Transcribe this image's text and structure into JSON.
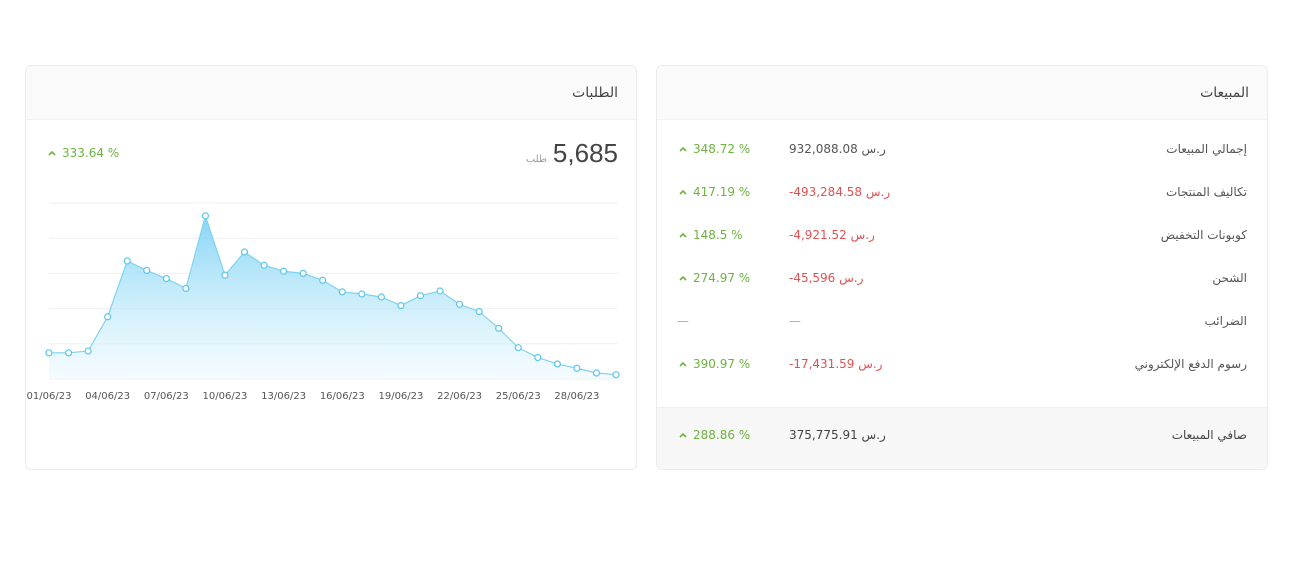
{
  "colors": {
    "positive": "#6db33f",
    "negative": "#e05252",
    "chart_line": "#7fd3f2",
    "chart_fill_top": "#7fd3f5",
    "chart_fill_bottom": "#eaf8fd"
  },
  "orders": {
    "title": "الطلبات",
    "total": "5,685",
    "unit": "طلب",
    "change": "333.64 %",
    "change_icon": "chevron-up-icon"
  },
  "sales": {
    "title": "المبيعات",
    "rows": [
      {
        "label": "إجمالي المبيعات",
        "amount": "932,088.08 ر.س",
        "negative": false,
        "change": "348.72 %"
      },
      {
        "label": "تكاليف المنتجات",
        "amount": "-493,284.58 ر.س",
        "negative": true,
        "change": "417.19 %"
      },
      {
        "label": "كوبونات التخفيض",
        "amount": "-4,921.52 ر.س",
        "negative": true,
        "change": "148.5 %"
      },
      {
        "label": "الشحن",
        "amount": "-45,596 ر.س",
        "negative": true,
        "change": "274.97 %"
      },
      {
        "label": "الضرائب",
        "amount": "—",
        "negative": false,
        "change": "—"
      },
      {
        "label": "رسوم الدفع الإلكتروني",
        "amount": "-17,431.59 ر.س",
        "negative": true,
        "change": "390.97 %"
      }
    ],
    "net": {
      "label": "صافي المبيعات",
      "amount": "375,775.91 ر.س",
      "change": "288.86 %"
    }
  },
  "chart_data": {
    "type": "area",
    "title": "",
    "xlabel": "",
    "ylabel": "",
    "grid": true,
    "x": [
      "01/06/23",
      "02/06/23",
      "03/06/23",
      "04/06/23",
      "05/06/23",
      "06/06/23",
      "07/06/23",
      "08/06/23",
      "09/06/23",
      "10/06/23",
      "11/06/23",
      "12/06/23",
      "13/06/23",
      "14/06/23",
      "15/06/23",
      "16/06/23",
      "17/06/23",
      "18/06/23",
      "19/06/23",
      "20/06/23",
      "21/06/23",
      "22/06/23",
      "23/06/23",
      "24/06/23",
      "25/06/23",
      "26/06/23",
      "27/06/23",
      "28/06/23",
      "29/06/23",
      "30/06/23"
    ],
    "tick_labels": [
      "01/06/23",
      "04/06/23",
      "07/06/23",
      "10/06/23",
      "13/06/23",
      "16/06/23",
      "19/06/23",
      "22/06/23",
      "25/06/23",
      "28/06/23"
    ],
    "values": [
      61,
      61,
      65,
      145,
      275,
      253,
      234,
      211,
      380,
      242,
      296,
      265,
      251,
      246,
      230,
      203,
      198,
      191,
      171,
      194,
      205,
      174,
      157,
      118,
      73,
      50,
      35,
      25,
      14,
      10
    ],
    "ylim": [
      0,
      410
    ]
  }
}
